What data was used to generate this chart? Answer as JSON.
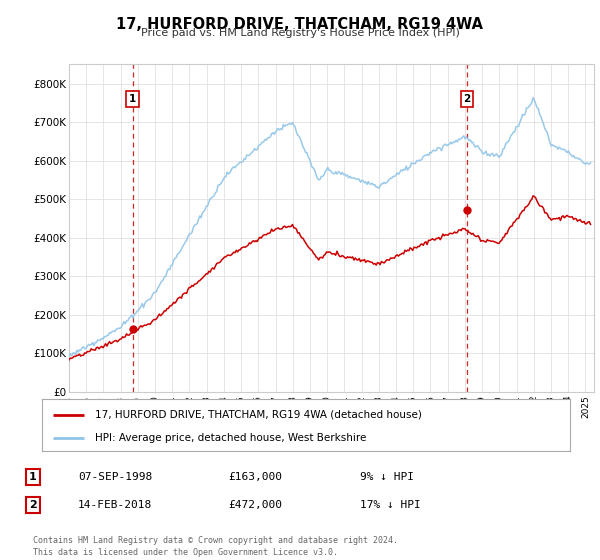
{
  "title": "17, HURFORD DRIVE, THATCHAM, RG19 4WA",
  "subtitle": "Price paid vs. HM Land Registry's House Price Index (HPI)",
  "ylabel_ticks": [
    "£0",
    "£100K",
    "£200K",
    "£300K",
    "£400K",
    "£500K",
    "£600K",
    "£700K",
    "£800K"
  ],
  "ytick_values": [
    0,
    100000,
    200000,
    300000,
    400000,
    500000,
    600000,
    700000,
    800000
  ],
  "ylim": [
    0,
    850000
  ],
  "xlim_start": 1995.0,
  "xlim_end": 2025.5,
  "transaction1_x": 1998.69,
  "transaction1_y": 163000,
  "transaction2_x": 2018.12,
  "transaction2_y": 472000,
  "vline1_x": 1998.69,
  "vline2_x": 2018.12,
  "legend_line1": "17, HURFORD DRIVE, THATCHAM, RG19 4WA (detached house)",
  "legend_line2": "HPI: Average price, detached house, West Berkshire",
  "table_row1": [
    "1",
    "07-SEP-1998",
    "£163,000",
    "9% ↓ HPI"
  ],
  "table_row2": [
    "2",
    "14-FEB-2018",
    "£472,000",
    "17% ↓ HPI"
  ],
  "footnote": "Contains HM Land Registry data © Crown copyright and database right 2024.\nThis data is licensed under the Open Government Licence v3.0.",
  "hpi_color": "#8ec4e8",
  "price_color": "#cc0000",
  "vline_color": "#cc0000",
  "background_color": "#ffffff",
  "grid_color": "#e0e0e0"
}
